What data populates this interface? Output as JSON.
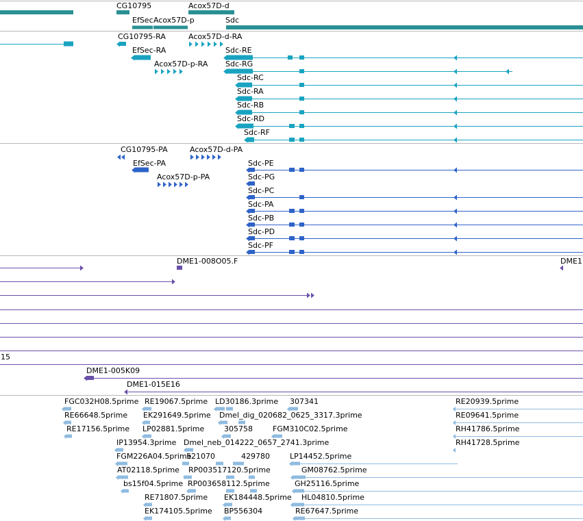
{
  "tracks": {
    "genes": {
      "color": "#2a9094",
      "features": [
        {
          "name": "CG10795"
        },
        {
          "name": "Acox57D-d"
        },
        {
          "name": "EfSec"
        },
        {
          "name": "Acox57D-p"
        },
        {
          "name": "Sdc"
        }
      ]
    },
    "transcripts": {
      "color": "#19a3c0",
      "features": [
        {
          "name": "CG10795-RA"
        },
        {
          "name": "Acox57D-d-RA"
        },
        {
          "name": "EfSec-RA"
        },
        {
          "name": "Sdc-RE"
        },
        {
          "name": "Acox57D-p-RA"
        },
        {
          "name": "Sdc-RG"
        },
        {
          "name": "Sdc-RC"
        },
        {
          "name": "Sdc-RA"
        },
        {
          "name": "Sdc-RB"
        },
        {
          "name": "Sdc-RD"
        },
        {
          "name": "Sdc-RF"
        }
      ]
    },
    "proteins": {
      "color": "#2e63c8",
      "features": [
        {
          "name": "CG10795-PA"
        },
        {
          "name": "Acox57D-d-PA"
        },
        {
          "name": "EfSec-PA"
        },
        {
          "name": "Sdc-PE"
        },
        {
          "name": "Acox57D-p-PA"
        },
        {
          "name": "Sdc-PG"
        },
        {
          "name": "Sdc-PC"
        },
        {
          "name": "Sdc-PA"
        },
        {
          "name": "Sdc-PB"
        },
        {
          "name": "Sdc-PD"
        },
        {
          "name": "Sdc-PF"
        }
      ]
    },
    "clones": {
      "color": "#6a4fa8",
      "features": [
        {
          "name": "DME1-008O05.F"
        },
        {
          "name": "DME1"
        },
        {
          "name": "15"
        },
        {
          "name": "DME1-005K09"
        },
        {
          "name": "DME1-015E16"
        }
      ]
    },
    "ests": {
      "color": "#8fbbe0",
      "features": [
        {
          "name": "FGC032H08.5prime"
        },
        {
          "name": "RE19067.5prime"
        },
        {
          "name": "LD30186.3prime"
        },
        {
          "name": "307341"
        },
        {
          "name": "RE20939.5prime"
        },
        {
          "name": "RE66648.5prime"
        },
        {
          "name": "EK291649.5prime"
        },
        {
          "name": "Dmel_dig_020682_0625_3317.3prime"
        },
        {
          "name": "RE09641.5prime"
        },
        {
          "name": "RE17156.5prime"
        },
        {
          "name": "LP02881.5prime"
        },
        {
          "name": "305758"
        },
        {
          "name": "FGM310C02.5prime"
        },
        {
          "name": "RH41786.5prime"
        },
        {
          "name": "IP13954.3prime"
        },
        {
          "name": "Dmel_neb_014222_0657_2741.3prime"
        },
        {
          "name": "RH41728.5prime"
        },
        {
          "name": "FGM226A04.5prime"
        },
        {
          "name": "521070"
        },
        {
          "name": "429780"
        },
        {
          "name": "LP14452.5prime"
        },
        {
          "name": "AT02118.5prime"
        },
        {
          "name": "RP003517120.5prime"
        },
        {
          "name": "GM08762.5prime"
        },
        {
          "name": "bs15f04.5prime"
        },
        {
          "name": "RP003658112.5prime"
        },
        {
          "name": "GH25116.5prime"
        },
        {
          "name": "RE71807.5prime"
        },
        {
          "name": "EK184448.5prime"
        },
        {
          "name": "HL04810.5prime"
        },
        {
          "name": "EK174105.5prime"
        },
        {
          "name": "BP556304"
        },
        {
          "name": "RE67647.5prime"
        }
      ]
    }
  }
}
